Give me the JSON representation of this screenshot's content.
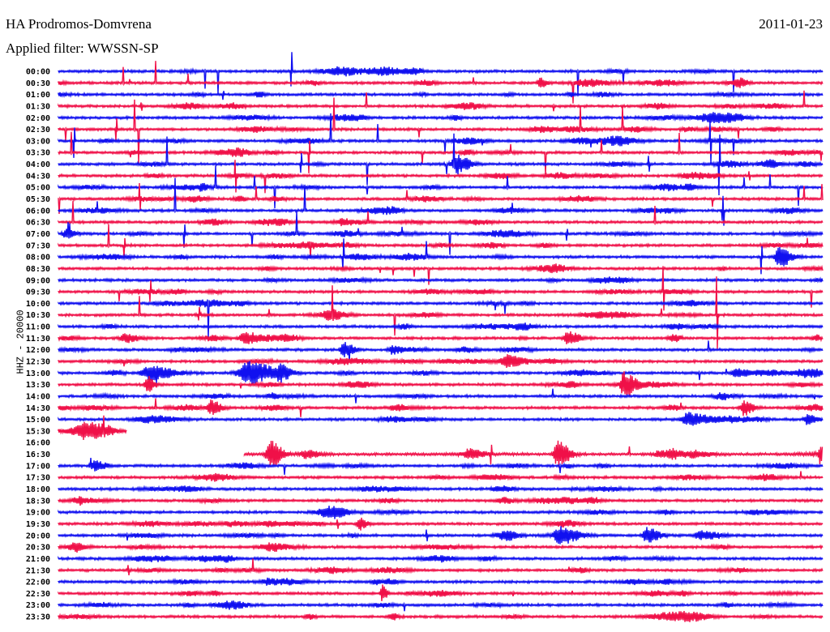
{
  "header": {
    "title": "HA Prodromos-Domvrena",
    "date": "2011-01-23",
    "filter": "Applied filter: WWSSN-SP"
  },
  "chart_data": {
    "type": "line",
    "title": "HA Prodromos-Domvrena",
    "subtitle": "Applied filter: WWSSN-SP",
    "date": "2011-01-23",
    "ylabel": "HHZ - 20000",
    "row_minutes": 30,
    "rows": [
      "00:00",
      "00:30",
      "01:00",
      "01:30",
      "02:00",
      "02:30",
      "03:00",
      "03:30",
      "04:00",
      "04:30",
      "05:00",
      "05:30",
      "06:00",
      "06:30",
      "07:00",
      "07:30",
      "08:00",
      "08:30",
      "09:00",
      "09:30",
      "10:00",
      "10:30",
      "11:00",
      "11:30",
      "12:00",
      "12:30",
      "13:00",
      "13:30",
      "14:00",
      "14:30",
      "15:00",
      "15:30",
      "16:00",
      "16:30",
      "17:00",
      "17:30",
      "18:00",
      "18:30",
      "19:00",
      "19:30",
      "20:00",
      "20:30",
      "21:00",
      "21:30",
      "22:00",
      "22:30",
      "23:00",
      "23:30"
    ],
    "colors": {
      "even": "#1010f0",
      "odd": "#f01048"
    },
    "gap": {
      "start_row": "15:30",
      "start_minute": 2.7,
      "end_row": "16:30",
      "end_minute": 7.3
    },
    "events": [
      {
        "row": "00:30",
        "minute": 18.9,
        "amp": 6,
        "dur": 0.3
      },
      {
        "row": "04:00",
        "minute": 15.6,
        "amp": 11,
        "dur": 0.5
      },
      {
        "row": "07:00",
        "minute": 0.3,
        "amp": 5,
        "dur": 0.4
      },
      {
        "row": "08:00",
        "minute": 28.3,
        "amp": 12,
        "dur": 0.5
      },
      {
        "row": "11:30",
        "minute": 2.6,
        "amp": 5,
        "dur": 0.6
      },
      {
        "row": "11:30",
        "minute": 7.3,
        "amp": 6,
        "dur": 0.6
      },
      {
        "row": "11:30",
        "minute": 20.0,
        "amp": 8,
        "dur": 0.5
      },
      {
        "row": "12:00",
        "minute": 11.2,
        "amp": 9,
        "dur": 0.4
      },
      {
        "row": "12:00",
        "minute": 13.1,
        "amp": 5,
        "dur": 0.4
      },
      {
        "row": "12:30",
        "minute": 17.6,
        "amp": 7,
        "dur": 0.8
      },
      {
        "row": "13:00",
        "minute": 3.6,
        "amp": 9,
        "dur": 1.0
      },
      {
        "row": "13:00",
        "minute": 7.4,
        "amp": 14,
        "dur": 1.1
      },
      {
        "row": "13:00",
        "minute": 8.7,
        "amp": 9,
        "dur": 0.4
      },
      {
        "row": "13:00",
        "minute": 26.6,
        "amp": 5,
        "dur": 0.6
      },
      {
        "row": "13:30",
        "minute": 3.5,
        "amp": 10,
        "dur": 0.3
      },
      {
        "row": "13:30",
        "minute": 22.2,
        "amp": 14,
        "dur": 0.4
      },
      {
        "row": "14:30",
        "minute": 6.0,
        "amp": 9,
        "dur": 0.4
      },
      {
        "row": "14:30",
        "minute": 26.9,
        "amp": 9,
        "dur": 0.4
      },
      {
        "row": "15:00",
        "minute": 24.7,
        "amp": 8,
        "dur": 0.8
      },
      {
        "row": "15:00",
        "minute": 29.4,
        "amp": 6,
        "dur": 0.4
      },
      {
        "row": "16:30",
        "minute": 8.3,
        "amp": 16,
        "dur": 0.5
      },
      {
        "row": "16:30",
        "minute": 9.7,
        "amp": 5,
        "dur": 0.6
      },
      {
        "row": "16:30",
        "minute": 16.1,
        "amp": 5,
        "dur": 0.6
      },
      {
        "row": "16:30",
        "minute": 19.6,
        "amp": 16,
        "dur": 0.5
      },
      {
        "row": "16:30",
        "minute": 29.9,
        "amp": 12,
        "dur": 0.2
      },
      {
        "row": "17:00",
        "minute": 1.4,
        "amp": 6,
        "dur": 0.5
      },
      {
        "row": "19:30",
        "minute": 11.8,
        "amp": 7,
        "dur": 0.3
      },
      {
        "row": "20:00",
        "minute": 19.7,
        "amp": 9,
        "dur": 0.8
      },
      {
        "row": "20:00",
        "minute": 23.1,
        "amp": 10,
        "dur": 0.5
      },
      {
        "row": "20:00",
        "minute": 25.2,
        "amp": 5,
        "dur": 0.7
      },
      {
        "row": "22:30",
        "minute": 12.7,
        "amp": 10,
        "dur": 0.2
      }
    ]
  }
}
